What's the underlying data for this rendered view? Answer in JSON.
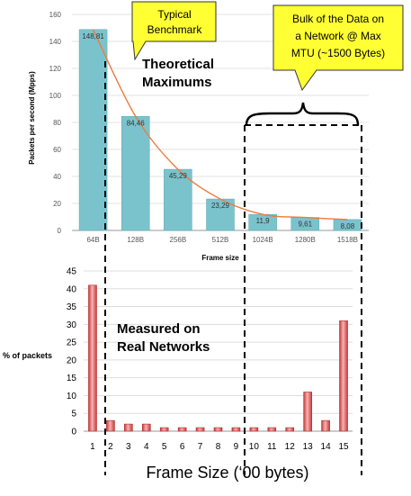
{
  "chart_data": [
    {
      "type": "bar",
      "categories": [
        "64B",
        "128B",
        "256B",
        "512B",
        "1024B",
        "1280B",
        "1518B"
      ],
      "values": [
        148.81,
        84.46,
        45.29,
        23.29,
        11.9,
        9.61,
        8.08
      ],
      "value_labels": [
        "148,81",
        "84,46",
        "45,29",
        "23,29",
        "11,9",
        "9,61",
        "8,08"
      ],
      "xlabel": "Frame size",
      "ylabel": "Packets per second (Mpps)",
      "ylim": [
        0,
        160
      ],
      "yticks": [
        0,
        20,
        40,
        60,
        80,
        100,
        120,
        140,
        160
      ],
      "trend_line": true,
      "grid": true,
      "bar_color": "#7bc3cc",
      "line_color": "#f07a3a",
      "annotations": {
        "typical": [
          "Typical",
          "Benchmark"
        ],
        "bulk": [
          "Bulk of the Data on",
          "a Network @ Max",
          "MTU (~1500 Bytes)"
        ],
        "theoretical": [
          "Theoretical",
          "Maximums"
        ]
      },
      "callout_fill": "#ffff33"
    },
    {
      "type": "bar",
      "categories": [
        "1",
        "2",
        "3",
        "4",
        "5",
        "6",
        "7",
        "8",
        "9",
        "10",
        "11",
        "12",
        "13",
        "14",
        "15"
      ],
      "values": [
        41,
        3,
        2,
        2,
        1,
        1,
        1,
        1,
        1,
        1,
        1,
        1,
        11,
        3,
        31
      ],
      "xlabel": "Frame Size (‘00 bytes)",
      "ylabel": "% of packets",
      "ylim": [
        0,
        45
      ],
      "yticks": [
        0,
        5,
        10,
        15,
        20,
        25,
        30,
        35,
        40,
        45
      ],
      "grid": true,
      "bar_color": "#e86464",
      "annotation": [
        "Measured on",
        "Real Networks"
      ]
    }
  ]
}
